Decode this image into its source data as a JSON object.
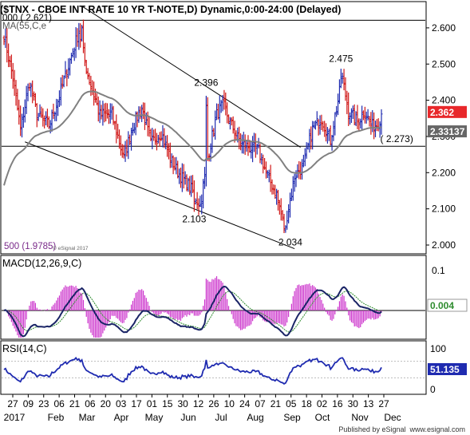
{
  "header": {
    "title": "($TNX - CBOE INT RATE 10 YR T-NOTE,D) Dynamic,0:00-24:00 (Delayed)",
    "ma_label": "MA(55,C,e",
    "fib_top_label": "000 ( 2.621)",
    "fib_bottom_label": "500 (1.9785)",
    "copyright": "© eSignal 2017"
  },
  "footer": {
    "published": "Published by eSignal   www.esignal.com"
  },
  "colors": {
    "up_bar": "#1f2bb0",
    "down_bar": "#d01818",
    "ma_line": "#808080",
    "trendline": "#000000",
    "macd_line": "#1a2466",
    "signal_line": "#2e8b2e",
    "macd_hist": "#cc33cc",
    "rsi_line": "#1f2bb0",
    "last_price_bg": "#e8282b",
    "ma_value_bg": "#666666",
    "indicator_value_bg": "#1f2bb0"
  },
  "chart_data": [
    {
      "type": "ohlc",
      "panel": "price",
      "title": "($TNX - CBOE INT RATE 10 YR T-NOTE,D) Dynamic,0:00-24:00 (Delayed)",
      "ylim": [
        1.98,
        2.65
      ],
      "y_ticks": [
        "2.600",
        "2.500",
        "2.400",
        "2.300",
        "2.200",
        "2.100",
        "2.000"
      ],
      "x_ticks": [
        "27",
        "09",
        "23",
        "06",
        "21",
        "06",
        "20",
        "03",
        "17",
        "01",
        "15",
        "30",
        "12",
        "26",
        "10",
        "24",
        "07",
        "21",
        "05",
        "18",
        "02",
        "16",
        "30",
        "13",
        "27"
      ],
      "x_months": [
        "2017",
        "Feb",
        "Mar",
        "Apr",
        "May",
        "Jun",
        "Jul",
        "Aug",
        "Sep",
        "Oct",
        "Nov",
        "Dec"
      ],
      "anchors": [
        {
          "bar": 0,
          "close": 2.58
        },
        {
          "bar": 6,
          "close": 2.46
        },
        {
          "bar": 11,
          "close": 2.32
        },
        {
          "bar": 17,
          "close": 2.45
        },
        {
          "bar": 22,
          "close": 2.36
        },
        {
          "bar": 30,
          "close": 2.33
        },
        {
          "bar": 37,
          "close": 2.41
        },
        {
          "bar": 44,
          "close": 2.51
        },
        {
          "bar": 50,
          "close": 2.59
        },
        {
          "bar": 56,
          "close": 2.47
        },
        {
          "bar": 64,
          "close": 2.36
        },
        {
          "bar": 72,
          "close": 2.36
        },
        {
          "bar": 80,
          "close": 2.24
        },
        {
          "bar": 86,
          "close": 2.33
        },
        {
          "bar": 92,
          "close": 2.38
        },
        {
          "bar": 98,
          "close": 2.28
        },
        {
          "bar": 105,
          "close": 2.31
        },
        {
          "bar": 112,
          "close": 2.23
        },
        {
          "bar": 118,
          "close": 2.19
        },
        {
          "bar": 124,
          "close": 2.16
        },
        {
          "bar": 131,
          "close": 2.11
        },
        {
          "bar": 136,
          "close": 2.24
        },
        {
          "bar": 142,
          "close": 2.36
        },
        {
          "bar": 146,
          "close": 2.39
        },
        {
          "bar": 152,
          "close": 2.33
        },
        {
          "bar": 158,
          "close": 2.28
        },
        {
          "bar": 164,
          "close": 2.27
        },
        {
          "bar": 170,
          "close": 2.26
        },
        {
          "bar": 176,
          "close": 2.19
        },
        {
          "bar": 182,
          "close": 2.14
        },
        {
          "bar": 187,
          "close": 2.05
        },
        {
          "bar": 190,
          "close": 2.1
        },
        {
          "bar": 194,
          "close": 2.19
        },
        {
          "bar": 200,
          "close": 2.22
        },
        {
          "bar": 206,
          "close": 2.32
        },
        {
          "bar": 212,
          "close": 2.35
        },
        {
          "bar": 218,
          "close": 2.29
        },
        {
          "bar": 223,
          "close": 2.4
        },
        {
          "bar": 226,
          "close": 2.46
        },
        {
          "bar": 230,
          "close": 2.37
        },
        {
          "bar": 236,
          "close": 2.34
        },
        {
          "bar": 241,
          "close": 2.37
        },
        {
          "bar": 245,
          "close": 2.33
        },
        {
          "bar": 249,
          "close": 2.33
        },
        {
          "bar": 252,
          "close": 2.362
        }
      ],
      "pivot_labels": [
        {
          "text": "2.621",
          "bar": 52,
          "value": 2.621
        },
        {
          "text": "2.396",
          "bar": 135,
          "value": 2.396
        },
        {
          "text": "2.103",
          "bar": 127,
          "value": 2.103
        },
        {
          "text": "2.034",
          "bar": 188,
          "value": 2.034
        },
        {
          "text": "2.475",
          "bar": 225,
          "value": 2.475
        },
        {
          "text": "( 2.273)",
          "bar": 248,
          "value": 2.273
        }
      ],
      "horizontal_lines": [
        {
          "label": "000 ( 2.621)",
          "value": 2.621
        },
        {
          "label": "( 2.273)",
          "value": 2.273
        }
      ],
      "trendlines": [
        {
          "from": {
            "bar": 52,
            "value": 2.66
          },
          "to": {
            "bar": 198,
            "value": 2.27
          }
        },
        {
          "from": {
            "bar": 14,
            "value": 2.285
          },
          "to": {
            "bar": 194,
            "value": 1.99
          }
        }
      ],
      "moving_average": {
        "name": "MA(55,C,e",
        "last": 2.33137
      },
      "last_price": 2.362,
      "last_ma": 2.33137
    },
    {
      "type": "line",
      "panel": "macd",
      "title": "MACD(12,26,9,C)",
      "y_ticks": [
        "0.1"
      ],
      "last_value": "0.004"
    },
    {
      "type": "line",
      "panel": "rsi",
      "title": "RSI(14,C)",
      "y_ticks": [
        "100",
        "50",
        "0"
      ],
      "ylim": [
        0,
        100
      ],
      "last_value": "51.135"
    }
  ],
  "price_labels": {
    "last_price": "2.362",
    "ma_value": "2.33137",
    "macd_value": "0.004",
    "rsi_value": "51.135"
  }
}
